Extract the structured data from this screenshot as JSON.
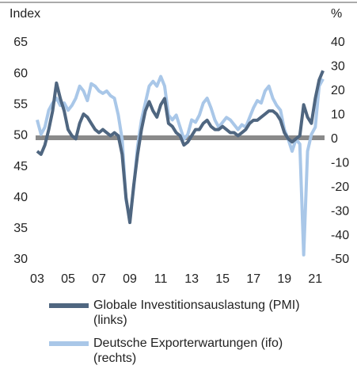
{
  "chart_data": {
    "type": "line",
    "y_label": "Index",
    "y2_label": "%",
    "x": [
      2003,
      2003.25,
      2003.5,
      2003.75,
      2004,
      2004.25,
      2004.5,
      2004.75,
      2005,
      2005.25,
      2005.5,
      2005.75,
      2006,
      2006.25,
      2006.5,
      2006.75,
      2007,
      2007.25,
      2007.5,
      2007.75,
      2008,
      2008.25,
      2008.5,
      2008.75,
      2009,
      2009.25,
      2009.5,
      2009.75,
      2010,
      2010.25,
      2010.5,
      2010.75,
      2011,
      2011.25,
      2011.5,
      2011.75,
      2012,
      2012.25,
      2012.5,
      2012.75,
      2013,
      2013.25,
      2013.5,
      2013.75,
      2014,
      2014.25,
      2014.5,
      2014.75,
      2015,
      2015.25,
      2015.5,
      2015.75,
      2016,
      2016.25,
      2016.5,
      2016.75,
      2017,
      2017.25,
      2017.5,
      2017.75,
      2018,
      2018.25,
      2018.5,
      2018.75,
      2019,
      2019.25,
      2019.5,
      2019.75,
      2020,
      2020.25,
      2020.5,
      2020.75,
      2021,
      2021.25,
      2021.5
    ],
    "series": [
      {
        "name": "Globale Investitionsauslastung (PMI) (links)",
        "color": "#4f6680",
        "axis": "y",
        "values": [
          47.5,
          47,
          48.5,
          51,
          54,
          58.5,
          56,
          54,
          51,
          50,
          49.5,
          52,
          53.5,
          53,
          52,
          51,
          50.5,
          51,
          50.5,
          50,
          50.5,
          50,
          47,
          40,
          36,
          42,
          47,
          51,
          54,
          55.5,
          54,
          53,
          55,
          56,
          52,
          51.5,
          50.5,
          50,
          48.5,
          49,
          50,
          51,
          51,
          52,
          52.5,
          51.5,
          51,
          51,
          51.5,
          51,
          50.5,
          50.5,
          50,
          50.5,
          51,
          52,
          52.5,
          52.5,
          53,
          53.5,
          54,
          54,
          53.5,
          52.5,
          50.5,
          49.5,
          49,
          49.5,
          50,
          55,
          53,
          52,
          56,
          59,
          60.5
        ]
      },
      {
        "name": "Deutsche Exporterwartungen (ifo) (rechts)",
        "color": "#a9c7e8",
        "axis": "y2",
        "values": [
          8,
          2,
          5,
          12,
          15,
          17,
          14,
          15,
          12,
          14,
          17,
          22,
          20,
          16,
          23,
          22,
          20,
          19,
          20,
          18,
          17,
          10,
          0,
          -25,
          -33,
          -20,
          -3,
          8,
          15,
          22,
          24,
          22,
          26,
          22,
          10,
          8,
          10,
          5,
          0,
          2,
          8,
          7,
          10,
          15,
          17,
          13,
          8,
          5,
          7,
          9,
          8,
          6,
          4,
          6,
          5,
          9,
          13,
          16,
          15,
          20,
          22,
          17,
          14,
          12,
          4,
          0,
          -5,
          0,
          -2,
          -48,
          -5,
          2,
          5,
          22,
          25
        ]
      }
    ],
    "xlim": [
      2002.9,
      2021.6
    ],
    "xticks": [
      {
        "value": 2003,
        "label": "03"
      },
      {
        "value": 2005,
        "label": "05"
      },
      {
        "value": 2007,
        "label": "07"
      },
      {
        "value": 2009,
        "label": "09"
      },
      {
        "value": 2011,
        "label": "11"
      },
      {
        "value": 2013,
        "label": "13"
      },
      {
        "value": 2015,
        "label": "15"
      },
      {
        "value": 2017,
        "label": "17"
      },
      {
        "value": 2019,
        "label": "19"
      },
      {
        "value": 2021,
        "label": "21"
      }
    ],
    "ylim": [
      30,
      65
    ],
    "yticks": [
      30,
      35,
      40,
      45,
      50,
      55,
      60,
      65
    ],
    "y2lim": [
      -50,
      40
    ],
    "y2ticks": [
      -50,
      -40,
      -30,
      -20,
      -10,
      0,
      10,
      20,
      30,
      40
    ]
  }
}
